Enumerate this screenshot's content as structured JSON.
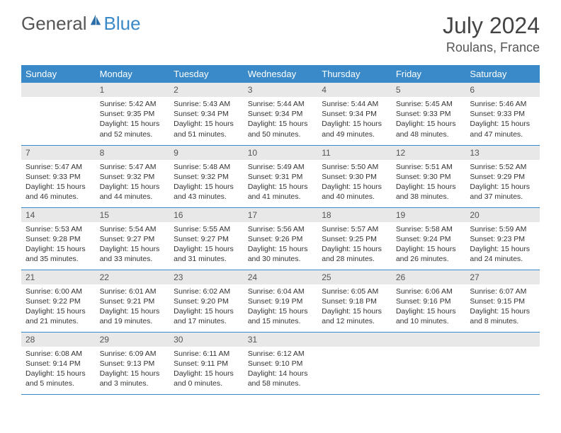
{
  "logo": {
    "general": "General",
    "blue": "Blue",
    "icon_color": "#2d6fa8"
  },
  "header": {
    "month": "July 2024",
    "location": "Roulans, France"
  },
  "colors": {
    "header_bg": "#3a8ac9",
    "header_text": "#ffffff",
    "daynum_bg": "#e8e8e8",
    "text": "#333333",
    "rule": "#3a8ac9"
  },
  "weekdays": [
    "Sunday",
    "Monday",
    "Tuesday",
    "Wednesday",
    "Thursday",
    "Friday",
    "Saturday"
  ],
  "weeks": [
    [
      {
        "n": "",
        "sunrise": "",
        "sunset": "",
        "daylight": ""
      },
      {
        "n": "1",
        "sunrise": "Sunrise: 5:42 AM",
        "sunset": "Sunset: 9:35 PM",
        "daylight": "Daylight: 15 hours and 52 minutes."
      },
      {
        "n": "2",
        "sunrise": "Sunrise: 5:43 AM",
        "sunset": "Sunset: 9:34 PM",
        "daylight": "Daylight: 15 hours and 51 minutes."
      },
      {
        "n": "3",
        "sunrise": "Sunrise: 5:44 AM",
        "sunset": "Sunset: 9:34 PM",
        "daylight": "Daylight: 15 hours and 50 minutes."
      },
      {
        "n": "4",
        "sunrise": "Sunrise: 5:44 AM",
        "sunset": "Sunset: 9:34 PM",
        "daylight": "Daylight: 15 hours and 49 minutes."
      },
      {
        "n": "5",
        "sunrise": "Sunrise: 5:45 AM",
        "sunset": "Sunset: 9:33 PM",
        "daylight": "Daylight: 15 hours and 48 minutes."
      },
      {
        "n": "6",
        "sunrise": "Sunrise: 5:46 AM",
        "sunset": "Sunset: 9:33 PM",
        "daylight": "Daylight: 15 hours and 47 minutes."
      }
    ],
    [
      {
        "n": "7",
        "sunrise": "Sunrise: 5:47 AM",
        "sunset": "Sunset: 9:33 PM",
        "daylight": "Daylight: 15 hours and 46 minutes."
      },
      {
        "n": "8",
        "sunrise": "Sunrise: 5:47 AM",
        "sunset": "Sunset: 9:32 PM",
        "daylight": "Daylight: 15 hours and 44 minutes."
      },
      {
        "n": "9",
        "sunrise": "Sunrise: 5:48 AM",
        "sunset": "Sunset: 9:32 PM",
        "daylight": "Daylight: 15 hours and 43 minutes."
      },
      {
        "n": "10",
        "sunrise": "Sunrise: 5:49 AM",
        "sunset": "Sunset: 9:31 PM",
        "daylight": "Daylight: 15 hours and 41 minutes."
      },
      {
        "n": "11",
        "sunrise": "Sunrise: 5:50 AM",
        "sunset": "Sunset: 9:30 PM",
        "daylight": "Daylight: 15 hours and 40 minutes."
      },
      {
        "n": "12",
        "sunrise": "Sunrise: 5:51 AM",
        "sunset": "Sunset: 9:30 PM",
        "daylight": "Daylight: 15 hours and 38 minutes."
      },
      {
        "n": "13",
        "sunrise": "Sunrise: 5:52 AM",
        "sunset": "Sunset: 9:29 PM",
        "daylight": "Daylight: 15 hours and 37 minutes."
      }
    ],
    [
      {
        "n": "14",
        "sunrise": "Sunrise: 5:53 AM",
        "sunset": "Sunset: 9:28 PM",
        "daylight": "Daylight: 15 hours and 35 minutes."
      },
      {
        "n": "15",
        "sunrise": "Sunrise: 5:54 AM",
        "sunset": "Sunset: 9:27 PM",
        "daylight": "Daylight: 15 hours and 33 minutes."
      },
      {
        "n": "16",
        "sunrise": "Sunrise: 5:55 AM",
        "sunset": "Sunset: 9:27 PM",
        "daylight": "Daylight: 15 hours and 31 minutes."
      },
      {
        "n": "17",
        "sunrise": "Sunrise: 5:56 AM",
        "sunset": "Sunset: 9:26 PM",
        "daylight": "Daylight: 15 hours and 30 minutes."
      },
      {
        "n": "18",
        "sunrise": "Sunrise: 5:57 AM",
        "sunset": "Sunset: 9:25 PM",
        "daylight": "Daylight: 15 hours and 28 minutes."
      },
      {
        "n": "19",
        "sunrise": "Sunrise: 5:58 AM",
        "sunset": "Sunset: 9:24 PM",
        "daylight": "Daylight: 15 hours and 26 minutes."
      },
      {
        "n": "20",
        "sunrise": "Sunrise: 5:59 AM",
        "sunset": "Sunset: 9:23 PM",
        "daylight": "Daylight: 15 hours and 24 minutes."
      }
    ],
    [
      {
        "n": "21",
        "sunrise": "Sunrise: 6:00 AM",
        "sunset": "Sunset: 9:22 PM",
        "daylight": "Daylight: 15 hours and 21 minutes."
      },
      {
        "n": "22",
        "sunrise": "Sunrise: 6:01 AM",
        "sunset": "Sunset: 9:21 PM",
        "daylight": "Daylight: 15 hours and 19 minutes."
      },
      {
        "n": "23",
        "sunrise": "Sunrise: 6:02 AM",
        "sunset": "Sunset: 9:20 PM",
        "daylight": "Daylight: 15 hours and 17 minutes."
      },
      {
        "n": "24",
        "sunrise": "Sunrise: 6:04 AM",
        "sunset": "Sunset: 9:19 PM",
        "daylight": "Daylight: 15 hours and 15 minutes."
      },
      {
        "n": "25",
        "sunrise": "Sunrise: 6:05 AM",
        "sunset": "Sunset: 9:18 PM",
        "daylight": "Daylight: 15 hours and 12 minutes."
      },
      {
        "n": "26",
        "sunrise": "Sunrise: 6:06 AM",
        "sunset": "Sunset: 9:16 PM",
        "daylight": "Daylight: 15 hours and 10 minutes."
      },
      {
        "n": "27",
        "sunrise": "Sunrise: 6:07 AM",
        "sunset": "Sunset: 9:15 PM",
        "daylight": "Daylight: 15 hours and 8 minutes."
      }
    ],
    [
      {
        "n": "28",
        "sunrise": "Sunrise: 6:08 AM",
        "sunset": "Sunset: 9:14 PM",
        "daylight": "Daylight: 15 hours and 5 minutes."
      },
      {
        "n": "29",
        "sunrise": "Sunrise: 6:09 AM",
        "sunset": "Sunset: 9:13 PM",
        "daylight": "Daylight: 15 hours and 3 minutes."
      },
      {
        "n": "30",
        "sunrise": "Sunrise: 6:11 AM",
        "sunset": "Sunset: 9:11 PM",
        "daylight": "Daylight: 15 hours and 0 minutes."
      },
      {
        "n": "31",
        "sunrise": "Sunrise: 6:12 AM",
        "sunset": "Sunset: 9:10 PM",
        "daylight": "Daylight: 14 hours and 58 minutes."
      },
      {
        "n": "",
        "sunrise": "",
        "sunset": "",
        "daylight": ""
      },
      {
        "n": "",
        "sunrise": "",
        "sunset": "",
        "daylight": ""
      },
      {
        "n": "",
        "sunrise": "",
        "sunset": "",
        "daylight": ""
      }
    ]
  ]
}
